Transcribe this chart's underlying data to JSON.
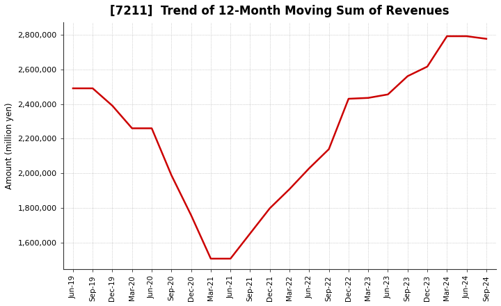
{
  "title": "[7211]  Trend of 12-Month Moving Sum of Revenues",
  "ylabel": "Amount (million yen)",
  "background_color": "#ffffff",
  "plot_bg_color": "#ffffff",
  "line_color": "#cc0000",
  "line_width": 1.8,
  "grid_color": "#999999",
  "ylim": [
    1450000,
    2870000
  ],
  "yticks": [
    1600000,
    1800000,
    2000000,
    2200000,
    2400000,
    2600000,
    2800000
  ],
  "x_labels": [
    "Jun-19",
    "Sep-19",
    "Dec-19",
    "Mar-20",
    "Jun-20",
    "Sep-20",
    "Dec-20",
    "Mar-21",
    "Jun-21",
    "Sep-21",
    "Dec-21",
    "Mar-22",
    "Jun-22",
    "Sep-22",
    "Dec-22",
    "Mar-23",
    "Jun-23",
    "Sep-23",
    "Dec-23",
    "Mar-24",
    "Jun-24",
    "Sep-24"
  ],
  "values": [
    2490000,
    2490000,
    2390000,
    2260000,
    2260000,
    1990000,
    1760000,
    1510000,
    1510000,
    1655000,
    1800000,
    1910000,
    2030000,
    2140000,
    2430000,
    2435000,
    2455000,
    2560000,
    2615000,
    2790000,
    2790000,
    2775000
  ]
}
